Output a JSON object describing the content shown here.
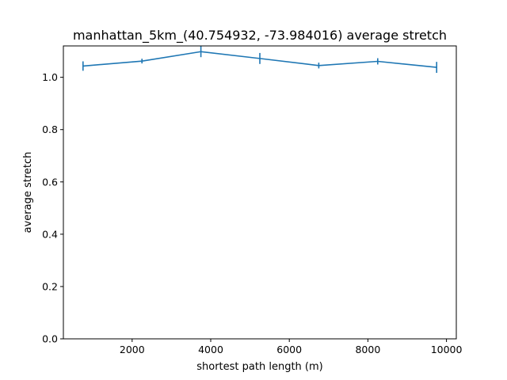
{
  "chart_data": {
    "type": "line",
    "title": "manhattan_5km_(40.754932, -73.984016) average stretch",
    "xlabel": "shortest path length (m)",
    "ylabel": "average stretch",
    "xlim": [
      250,
      10250
    ],
    "ylim": [
      0.0,
      1.12
    ],
    "xticks": [
      2000,
      4000,
      6000,
      8000,
      10000
    ],
    "yticks": [
      0.0,
      0.2,
      0.4,
      0.6,
      0.8,
      1.0
    ],
    "xtick_labels": [
      "2000",
      "4000",
      "6000",
      "8000",
      "10000"
    ],
    "ytick_labels": [
      "0.0",
      "0.2",
      "0.4",
      "0.6",
      "0.8",
      "1.0"
    ],
    "grid": false,
    "series": [
      {
        "color": "#1f77b4",
        "x": [
          750,
          2250,
          3750,
          5250,
          6750,
          8250,
          9750
        ],
        "y": [
          1.043,
          1.062,
          1.098,
          1.072,
          1.045,
          1.061,
          1.038
        ],
        "yerr": [
          0.018,
          0.009,
          0.021,
          0.021,
          0.011,
          0.012,
          0.021
        ]
      }
    ]
  }
}
